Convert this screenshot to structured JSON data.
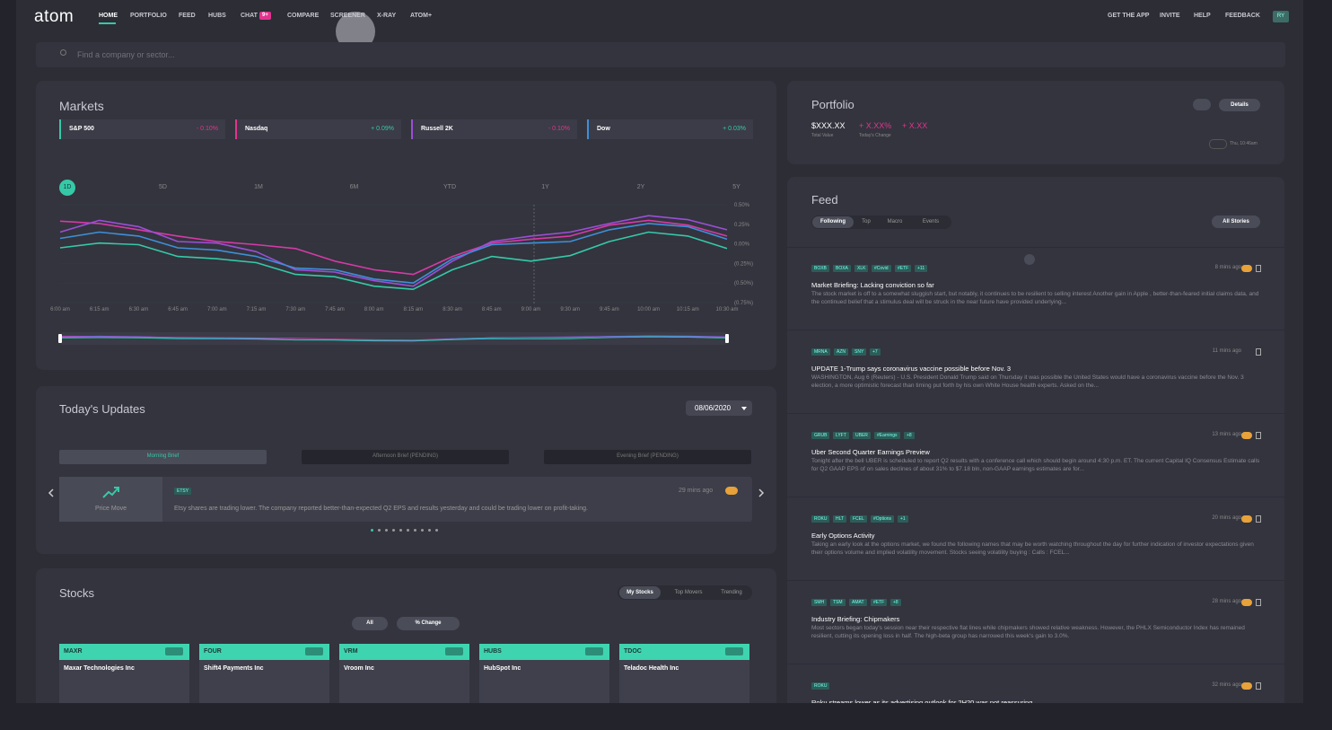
{
  "nav": {
    "logo": "atom",
    "items": [
      "HOME",
      "PORTFOLIO",
      "FEED",
      "HUBS",
      "CHAT",
      "COMPARE",
      "SCREENER",
      "X-RAY",
      "ATOM+"
    ],
    "chat_badge": "9+",
    "right": [
      "GET THE APP",
      "INVITE",
      "HELP",
      "FEEDBACK"
    ],
    "avatar": "RY"
  },
  "search": {
    "placeholder": "Find a company or sector..."
  },
  "markets": {
    "title": "Markets",
    "indices": [
      {
        "name": "S&P 500",
        "change": "- 0.10%"
      },
      {
        "name": "Nasdaq",
        "change": "+ 0.09%"
      },
      {
        "name": "Russell 2K",
        "change": "- 0.10%"
      },
      {
        "name": "Dow",
        "change": "+ 0.03%"
      }
    ],
    "ranges": [
      "1D",
      "5D",
      "1M",
      "6M",
      "YTD",
      "1Y",
      "2Y",
      "5Y"
    ],
    "chart_data": {
      "type": "line",
      "categories": [
        "6:00 am",
        "6:15 am",
        "6:30 am",
        "6:45 am",
        "7:00 am",
        "7:15 am",
        "7:30 am",
        "7:45 am",
        "8:00 am",
        "8:15 am",
        "8:30 am",
        "8:45 am",
        "9:00 am",
        "9:30 am",
        "9:45 am",
        "10:00 am",
        "10:15 am",
        "10:30 am"
      ],
      "series": [
        {
          "color": "#d63aa6",
          "values": [
            0.29,
            0.26,
            0.18,
            0.1,
            0.03,
            -0.01,
            -0.06,
            -0.22,
            -0.33,
            -0.39,
            -0.16,
            0.01,
            0.06,
            0.1,
            0.24,
            0.3,
            0.24,
            0.1
          ]
        },
        {
          "color": "#9b4fd6",
          "values": [
            0.15,
            0.3,
            0.22,
            0.03,
            0.01,
            -0.1,
            -0.33,
            -0.36,
            -0.47,
            -0.54,
            -0.22,
            0.03,
            0.1,
            0.15,
            0.26,
            0.36,
            0.31,
            0.18
          ]
        },
        {
          "color": "#3f8fd8",
          "values": [
            0.07,
            0.15,
            0.1,
            -0.05,
            -0.08,
            -0.16,
            -0.31,
            -0.33,
            -0.45,
            -0.5,
            -0.19,
            -0.01,
            0.01,
            0.03,
            0.18,
            0.26,
            0.22,
            0.06
          ]
        },
        {
          "color": "#35c9a8",
          "values": [
            -0.05,
            0.01,
            -0.01,
            -0.16,
            -0.19,
            -0.24,
            -0.39,
            -0.42,
            -0.54,
            -0.58,
            -0.33,
            -0.16,
            -0.22,
            -0.15,
            0.03,
            0.15,
            0.1,
            -0.06
          ]
        }
      ],
      "ylim": [
        -0.75,
        0.5
      ],
      "yticks": [
        {
          "value": 0.5,
          "label": "0.50%"
        },
        {
          "value": 0.25,
          "label": "0.25%"
        },
        {
          "value": 0,
          "label": "0.00%"
        },
        {
          "value": -0.25,
          "label": "(0.25%)"
        },
        {
          "value": -0.5,
          "label": "(0.50%)"
        },
        {
          "value": -0.75,
          "label": "(0.75%)"
        }
      ]
    }
  },
  "updates": {
    "title": "Today's Updates",
    "date": "08/06/2020",
    "tabs": [
      "Morning Brief",
      "Afternoon Brief (PENDING)",
      "Evening Brief (PENDING)"
    ],
    "card": {
      "kind": "Price Move",
      "ticker": "ETSY",
      "time": "29 mins ago",
      "text": "Etsy shares are trading lower. The company reported better-than-expected Q2 EPS and results yesterday and could be trading lower on profit-taking."
    }
  },
  "stocks": {
    "title": "Stocks",
    "tabs": [
      "My Stocks",
      "Top Movers",
      "Trending"
    ],
    "filters": [
      "All",
      "% Change"
    ],
    "cards": [
      {
        "ticker": "MAXR",
        "name": "Maxar Technologies Inc"
      },
      {
        "ticker": "FOUR",
        "name": "Shift4 Payments Inc"
      },
      {
        "ticker": "VRM",
        "name": "Vroom Inc"
      },
      {
        "ticker": "HUBS",
        "name": "HubSpot Inc"
      },
      {
        "ticker": "TDOC",
        "name": "Teladoc Health Inc"
      }
    ]
  },
  "portfolio": {
    "title": "Portfolio",
    "details": "Details",
    "value": "$XXX.XX",
    "value_label": "Total Value",
    "change_pct": "+ X.XX%",
    "change": "+ X.XX",
    "change_label": "Today's Change",
    "time": "Thu, 10:46am"
  },
  "feed": {
    "title": "Feed",
    "tabs": [
      "Following",
      "Top",
      "Macro",
      "Events"
    ],
    "filter": "All Stories",
    "items": [
      {
        "tags": [
          "BOXB",
          "BOXA",
          "XLK",
          "#Covid",
          "#ETF",
          "+11"
        ],
        "time": "8 mins ago",
        "headline": "Market Briefing: Lacking conviction so far",
        "body": "The stock market is off to a somewhat sluggish start, but notably, it continues to be resilient to selling interest Another gain in Apple , better-than-feared initial claims data, and the continued belief that a stimulus deal will be struck in the near future have provided underlying..."
      },
      {
        "tags": [
          "MRNA",
          "AZN",
          "SNY",
          "+7"
        ],
        "time": "11 mins ago",
        "headline": "UPDATE 1-Trump says coronavirus vaccine possible before Nov. 3",
        "body": "WASHINGTON, Aug 6 (Reuters) - U.S. President Donald Trump said on Thursday it was possible the United States would have a coronavirus vaccine before the Nov. 3 election, a more optimistic forecast than timing put forth by his own White House health experts. Asked on the..."
      },
      {
        "tags": [
          "GRUB",
          "LYFT",
          "UBER",
          "#Earnings",
          "+8"
        ],
        "time": "13 mins ago",
        "headline": "Uber Second Quarter Earnings Preview",
        "body": "Tonight after the bell UBER is scheduled to report Q2 results with a conference call which should begin around 4:30 p.m. ET. The current Capital IQ Consensus Estimate calls for Q2 GAAP EPS of on sales declines of about 31% to $7.18 bln, non-GAAP earnings estimates are for..."
      },
      {
        "tags": [
          "ROKU",
          "HLT",
          "FCEL",
          "#Options",
          "+1"
        ],
        "time": "20 mins ago",
        "headline": "Early Options Activity",
        "body": "Taking an early look at the options market, we found the following names that may be worth watching throughout the day for further indication of investor expectations given their options volume and implied volatility movement. Stocks seeing volatility buying : Calls : FCEL..."
      },
      {
        "tags": [
          "SMH",
          "TSM",
          "AMAT",
          "#ETF",
          "+8"
        ],
        "time": "28 mins ago",
        "headline": "Industry Briefing: Chipmakers",
        "body": "Most sectors began today's session near their respective flat lines while chipmakers showed relative weakness. However, the PHLX Semiconductor Index has remained resilient, cutting its opening loss in half. The high-beta group has narrowed this week's gain to 3.0%."
      },
      {
        "tags": [
          "ROKU"
        ],
        "time": "32 mins ago",
        "headline": "Roku streams lower as its advertising outlook for 2H20 was not reassuring",
        "body": ""
      }
    ]
  }
}
